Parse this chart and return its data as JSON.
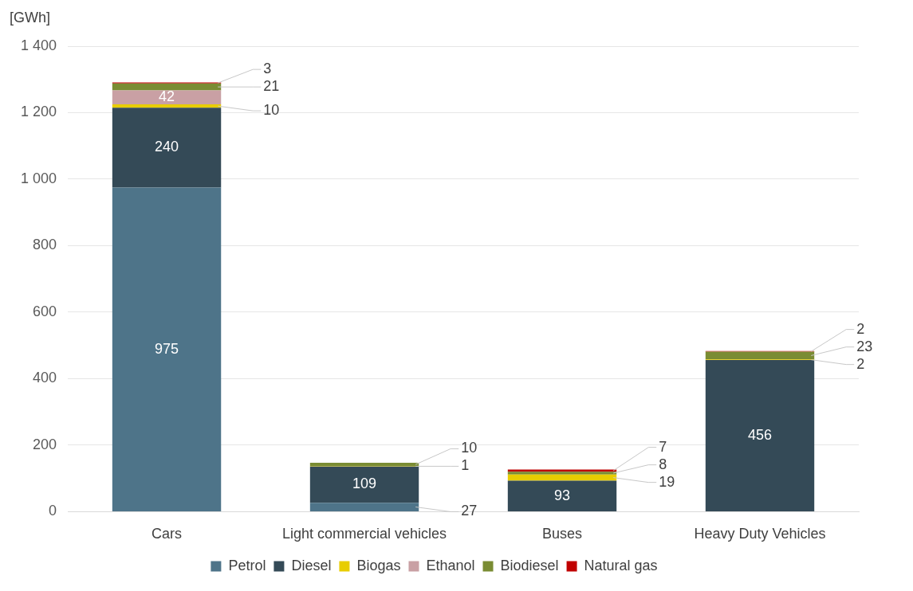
{
  "chart_data": {
    "type": "bar",
    "ylabel": "[GWh]",
    "stacked": true,
    "categories": [
      "Cars",
      "Light commercial vehicles",
      "Buses",
      "Heavy Duty Vehicles"
    ],
    "series": [
      {
        "name": "Petrol",
        "color": "#4e7489",
        "values": [
          975,
          27,
          null,
          null
        ]
      },
      {
        "name": "Diesel",
        "color": "#344a57",
        "values": [
          240,
          109,
          93,
          456
        ]
      },
      {
        "name": "Biogas",
        "color": "#e8cd00",
        "values": [
          10,
          1,
          19,
          2
        ]
      },
      {
        "name": "Ethanol",
        "color": "#c9a0a4",
        "values": [
          42,
          null,
          null,
          null
        ]
      },
      {
        "name": "Biodiesel",
        "color": "#7a8c33",
        "values": [
          21,
          10,
          8,
          23
        ]
      },
      {
        "name": "Natural gas",
        "color": "#c00000",
        "values": [
          3,
          null,
          7,
          2
        ]
      }
    ],
    "ylim": [
      0,
      1400
    ],
    "yticks": [
      0,
      200,
      400,
      600,
      800,
      {
        "value": 1000,
        "label": "1 000"
      },
      {
        "value": 1200,
        "label": "1 200"
      },
      {
        "value": 1400,
        "label": "1 400"
      }
    ],
    "grid": "y",
    "legend": "bottom",
    "data_labels": true
  }
}
